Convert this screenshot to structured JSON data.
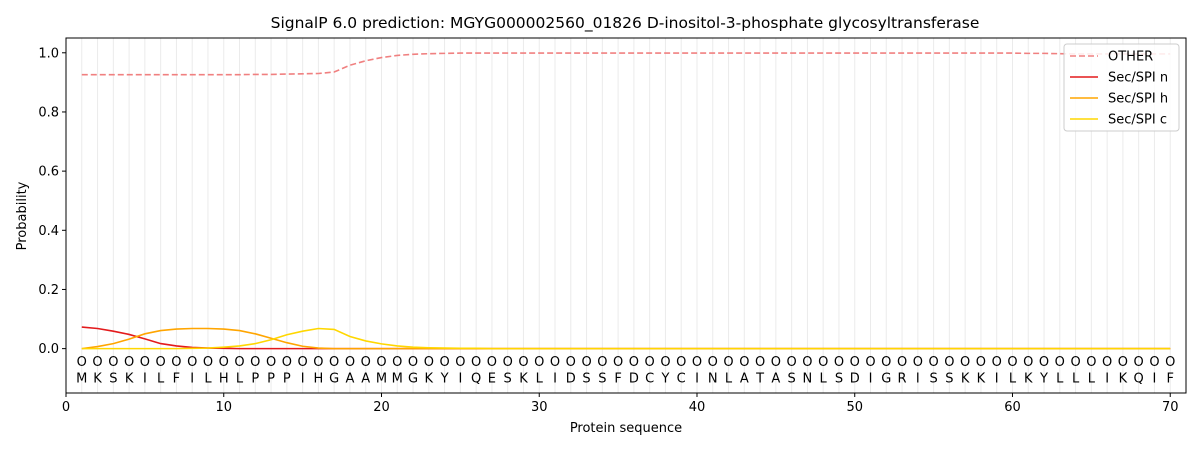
{
  "chart_data": {
    "type": "line",
    "title": "SignalP 6.0 prediction: MGYG000002560_01826 D-inositol-3-phosphate glycosyltransferase",
    "xlabel": "Protein sequence",
    "ylabel": "Probability",
    "xlim": [
      0,
      71
    ],
    "ylim": [
      -0.15,
      1.05
    ],
    "x_ticks": [
      0,
      10,
      20,
      30,
      40,
      50,
      60,
      70
    ],
    "y_ticks": [
      0.0,
      0.2,
      0.4,
      0.6,
      0.8,
      1.0
    ],
    "y_tick_labels": [
      "0.0",
      "0.2",
      "0.4",
      "0.6",
      "0.8",
      "1.0"
    ],
    "grid": "vertical lines at each residue",
    "legend_position": "top-right",
    "sequence": [
      "M",
      "K",
      "S",
      "K",
      "I",
      "L",
      "F",
      "I",
      "L",
      "H",
      "L",
      "P",
      "P",
      "P",
      "I",
      "H",
      "G",
      "A",
      "A",
      "M",
      "M",
      "G",
      "K",
      "Y",
      "I",
      "Q",
      "E",
      "S",
      "K",
      "L",
      "I",
      "D",
      "S",
      "S",
      "F",
      "D",
      "C",
      "Y",
      "C",
      "I",
      "N",
      "L",
      "A",
      "T",
      "A",
      "S",
      "N",
      "L",
      "S",
      "D",
      "I",
      "G",
      "R",
      "I",
      "S",
      "S",
      "K",
      "K",
      "I",
      "L",
      "K",
      "Y",
      "L",
      "L",
      "L",
      "I",
      "K",
      "Q",
      "I",
      "F"
    ],
    "predicted_labels": [
      "O",
      "O",
      "O",
      "O",
      "O",
      "O",
      "O",
      "O",
      "O",
      "O",
      "O",
      "O",
      "O",
      "O",
      "O",
      "O",
      "O",
      "O",
      "O",
      "O",
      "O",
      "O",
      "O",
      "O",
      "O",
      "O",
      "O",
      "O",
      "O",
      "O",
      "O",
      "O",
      "O",
      "O",
      "O",
      "O",
      "O",
      "O",
      "O",
      "O",
      "O",
      "O",
      "O",
      "O",
      "O",
      "O",
      "O",
      "O",
      "O",
      "O",
      "O",
      "O",
      "O",
      "O",
      "O",
      "O",
      "O",
      "O",
      "O",
      "O",
      "O",
      "O",
      "O",
      "O",
      "O",
      "O",
      "O",
      "O",
      "O",
      "O"
    ],
    "series": [
      {
        "name": "OTHER",
        "color": "#f08080",
        "dashed": true,
        "values": [
          0.926,
          0.926,
          0.926,
          0.926,
          0.926,
          0.926,
          0.926,
          0.926,
          0.926,
          0.926,
          0.926,
          0.927,
          0.927,
          0.928,
          0.929,
          0.93,
          0.935,
          0.958,
          0.973,
          0.984,
          0.991,
          0.995,
          0.997,
          0.998,
          0.999,
          0.999,
          0.999,
          0.999,
          0.999,
          0.999,
          0.999,
          0.999,
          0.999,
          0.999,
          0.999,
          0.999,
          0.999,
          0.999,
          0.999,
          0.999,
          0.999,
          0.999,
          0.999,
          0.999,
          0.999,
          0.999,
          0.999,
          0.999,
          0.999,
          0.999,
          0.999,
          0.999,
          0.999,
          0.999,
          0.999,
          0.999,
          0.999,
          0.999,
          0.999,
          0.999,
          0.998,
          0.998,
          0.997,
          0.996,
          0.996,
          0.996,
          0.996,
          0.996,
          0.996,
          0.996
        ]
      },
      {
        "name": "Sec/SPI n",
        "color": "#e31a1c",
        "dashed": false,
        "values": [
          0.073,
          0.068,
          0.059,
          0.048,
          0.033,
          0.017,
          0.009,
          0.004,
          0.002,
          0.001,
          0.0,
          0.0,
          0.0,
          0.0,
          0.0,
          0.0,
          0.0,
          0.0,
          0.0,
          0.0,
          0.0,
          0.0,
          0.0,
          0.0,
          0.0,
          0.0,
          0.0,
          0.0,
          0.0,
          0.0,
          0.0,
          0.0,
          0.0,
          0.0,
          0.0,
          0.0,
          0.0,
          0.0,
          0.0,
          0.0,
          0.0,
          0.0,
          0.0,
          0.0,
          0.0,
          0.0,
          0.0,
          0.0,
          0.0,
          0.0,
          0.0,
          0.0,
          0.0,
          0.0,
          0.0,
          0.0,
          0.0,
          0.0,
          0.0,
          0.0,
          0.0,
          0.0,
          0.0,
          0.0,
          0.0,
          0.0,
          0.0,
          0.0,
          0.0,
          0.0
        ]
      },
      {
        "name": "Sec/SPI h",
        "color": "#ffa500",
        "dashed": false,
        "values": [
          0.0,
          0.007,
          0.017,
          0.032,
          0.05,
          0.061,
          0.066,
          0.068,
          0.068,
          0.066,
          0.061,
          0.05,
          0.035,
          0.02,
          0.008,
          0.002,
          0.0,
          0.0,
          0.0,
          0.0,
          0.0,
          0.0,
          0.0,
          0.0,
          0.0,
          0.0,
          0.0,
          0.0,
          0.0,
          0.0,
          0.0,
          0.0,
          0.0,
          0.0,
          0.0,
          0.0,
          0.0,
          0.0,
          0.0,
          0.0,
          0.0,
          0.0,
          0.0,
          0.0,
          0.0,
          0.0,
          0.0,
          0.0,
          0.0,
          0.0,
          0.0,
          0.0,
          0.0,
          0.0,
          0.0,
          0.0,
          0.0,
          0.0,
          0.0,
          0.0,
          0.0,
          0.0,
          0.0,
          0.0,
          0.0,
          0.0,
          0.0,
          0.0,
          0.0,
          0.0
        ]
      },
      {
        "name": "Sec/SPI c",
        "color": "#ffd700",
        "dashed": false,
        "values": [
          0.0,
          0.0,
          0.0,
          0.0,
          0.0,
          0.0,
          0.0,
          0.001,
          0.002,
          0.005,
          0.009,
          0.017,
          0.03,
          0.047,
          0.059,
          0.068,
          0.065,
          0.041,
          0.026,
          0.016,
          0.009,
          0.005,
          0.003,
          0.002,
          0.001,
          0.001,
          0.0,
          0.0,
          0.0,
          0.0,
          0.0,
          0.0,
          0.0,
          0.0,
          0.0,
          0.0,
          0.0,
          0.0,
          0.0,
          0.0,
          0.0,
          0.0,
          0.0,
          0.0,
          0.0,
          0.0,
          0.0,
          0.0,
          0.0,
          0.0,
          0.0,
          0.0,
          0.0,
          0.0,
          0.0,
          0.0,
          0.0,
          0.0,
          0.0,
          0.0,
          0.0,
          0.0,
          0.0,
          0.0,
          0.0,
          0.0,
          0.0,
          0.0,
          0.0,
          0.0
        ]
      }
    ]
  }
}
